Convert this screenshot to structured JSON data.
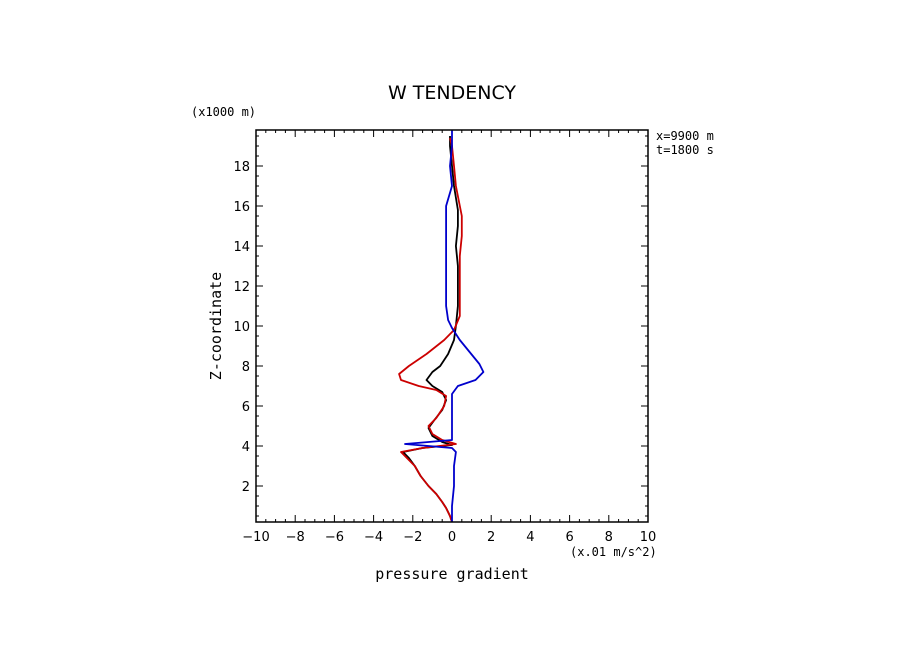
{
  "chart_data": {
    "type": "line",
    "title": "W TENDENCY",
    "xlabel": "pressure gradient",
    "ylabel": "Z-coordinate",
    "x_unit": "(x.01 m/s^2)",
    "y_unit": "(x1000 m)",
    "info": [
      "x=9900 m",
      "t=1800 s"
    ],
    "xlim": [
      -10,
      10
    ],
    "ylim": [
      0.2,
      19.8
    ],
    "xticks": [
      -10,
      -8,
      -6,
      -4,
      -2,
      0,
      2,
      4,
      6,
      8,
      10
    ],
    "xticklabels": [
      "−10",
      "−8",
      "−6",
      "−4",
      "−2",
      "0",
      "2",
      "4",
      "6",
      "8",
      "10"
    ],
    "yticks": [
      2,
      4,
      6,
      8,
      10,
      12,
      14,
      16,
      18
    ],
    "yticklabels": [
      "2",
      "4",
      "6",
      "8",
      "10",
      "12",
      "14",
      "16",
      "18"
    ],
    "grid": false,
    "series": [
      {
        "color": "#000000",
        "points": [
          [
            0.0,
            0.2
          ],
          [
            -0.1,
            0.5
          ],
          [
            -0.3,
            0.9
          ],
          [
            -0.5,
            1.2
          ],
          [
            -0.8,
            1.6
          ],
          [
            -1.2,
            2.0
          ],
          [
            -1.6,
            2.5
          ],
          [
            -1.9,
            3.0
          ],
          [
            -2.2,
            3.4
          ],
          [
            -2.5,
            3.7
          ],
          [
            -1.5,
            3.9
          ],
          [
            0.0,
            4.05
          ],
          [
            -0.5,
            4.2
          ],
          [
            -1.0,
            4.5
          ],
          [
            -1.2,
            4.9
          ],
          [
            -0.9,
            5.3
          ],
          [
            -0.5,
            5.8
          ],
          [
            -0.3,
            6.3
          ],
          [
            -0.5,
            6.7
          ],
          [
            -1.0,
            7.0
          ],
          [
            -1.3,
            7.3
          ],
          [
            -1.0,
            7.7
          ],
          [
            -0.6,
            8.0
          ],
          [
            -0.2,
            8.6
          ],
          [
            0.1,
            9.3
          ],
          [
            0.2,
            10.0
          ],
          [
            0.3,
            11.0
          ],
          [
            0.3,
            12.0
          ],
          [
            0.3,
            13.0
          ],
          [
            0.2,
            14.0
          ],
          [
            0.3,
            15.0
          ],
          [
            0.3,
            15.8
          ],
          [
            0.1,
            17.0
          ],
          [
            0.0,
            18.0
          ],
          [
            -0.1,
            19.0
          ],
          [
            -0.1,
            19.5
          ]
        ]
      },
      {
        "color": "#cc0000",
        "points": [
          [
            0.0,
            0.2
          ],
          [
            -0.1,
            0.5
          ],
          [
            -0.3,
            0.9
          ],
          [
            -0.5,
            1.2
          ],
          [
            -0.8,
            1.6
          ],
          [
            -1.2,
            2.0
          ],
          [
            -1.6,
            2.5
          ],
          [
            -1.9,
            3.0
          ],
          [
            -2.3,
            3.4
          ],
          [
            -2.6,
            3.7
          ],
          [
            -1.5,
            3.9
          ],
          [
            0.2,
            4.1
          ],
          [
            -0.5,
            4.3
          ],
          [
            -1.0,
            4.6
          ],
          [
            -1.2,
            5.0
          ],
          [
            -0.8,
            5.4
          ],
          [
            -0.4,
            6.0
          ],
          [
            -0.3,
            6.5
          ],
          [
            -0.8,
            6.8
          ],
          [
            -1.7,
            7.0
          ],
          [
            -2.6,
            7.3
          ],
          [
            -2.7,
            7.6
          ],
          [
            -2.2,
            8.0
          ],
          [
            -1.3,
            8.6
          ],
          [
            -0.4,
            9.3
          ],
          [
            0.1,
            9.8
          ],
          [
            0.4,
            10.5
          ],
          [
            0.4,
            12.0
          ],
          [
            0.4,
            13.5
          ],
          [
            0.5,
            14.5
          ],
          [
            0.5,
            15.5
          ],
          [
            0.2,
            17.0
          ],
          [
            0.1,
            18.0
          ],
          [
            0.0,
            19.0
          ],
          [
            -0.1,
            19.4
          ]
        ]
      },
      {
        "color": "#0000cc",
        "points": [
          [
            0.0,
            0.2
          ],
          [
            0.0,
            1.0
          ],
          [
            0.1,
            2.0
          ],
          [
            0.1,
            3.0
          ],
          [
            0.2,
            3.7
          ],
          [
            0.0,
            3.9
          ],
          [
            -2.4,
            4.1
          ],
          [
            0.0,
            4.3
          ],
          [
            0.0,
            5.0
          ],
          [
            0.0,
            6.0
          ],
          [
            0.0,
            6.6
          ],
          [
            0.3,
            7.0
          ],
          [
            1.2,
            7.3
          ],
          [
            1.6,
            7.7
          ],
          [
            1.4,
            8.1
          ],
          [
            0.9,
            8.7
          ],
          [
            0.4,
            9.3
          ],
          [
            0.0,
            9.9
          ],
          [
            -0.2,
            10.3
          ],
          [
            -0.3,
            11.0
          ],
          [
            -0.3,
            12.0
          ],
          [
            -0.3,
            13.0
          ],
          [
            -0.3,
            14.0
          ],
          [
            -0.3,
            15.0
          ],
          [
            -0.3,
            16.0
          ],
          [
            0.0,
            17.0
          ],
          [
            -0.1,
            18.0
          ],
          [
            0.0,
            19.0
          ],
          [
            0.0,
            19.8
          ]
        ]
      }
    ]
  }
}
